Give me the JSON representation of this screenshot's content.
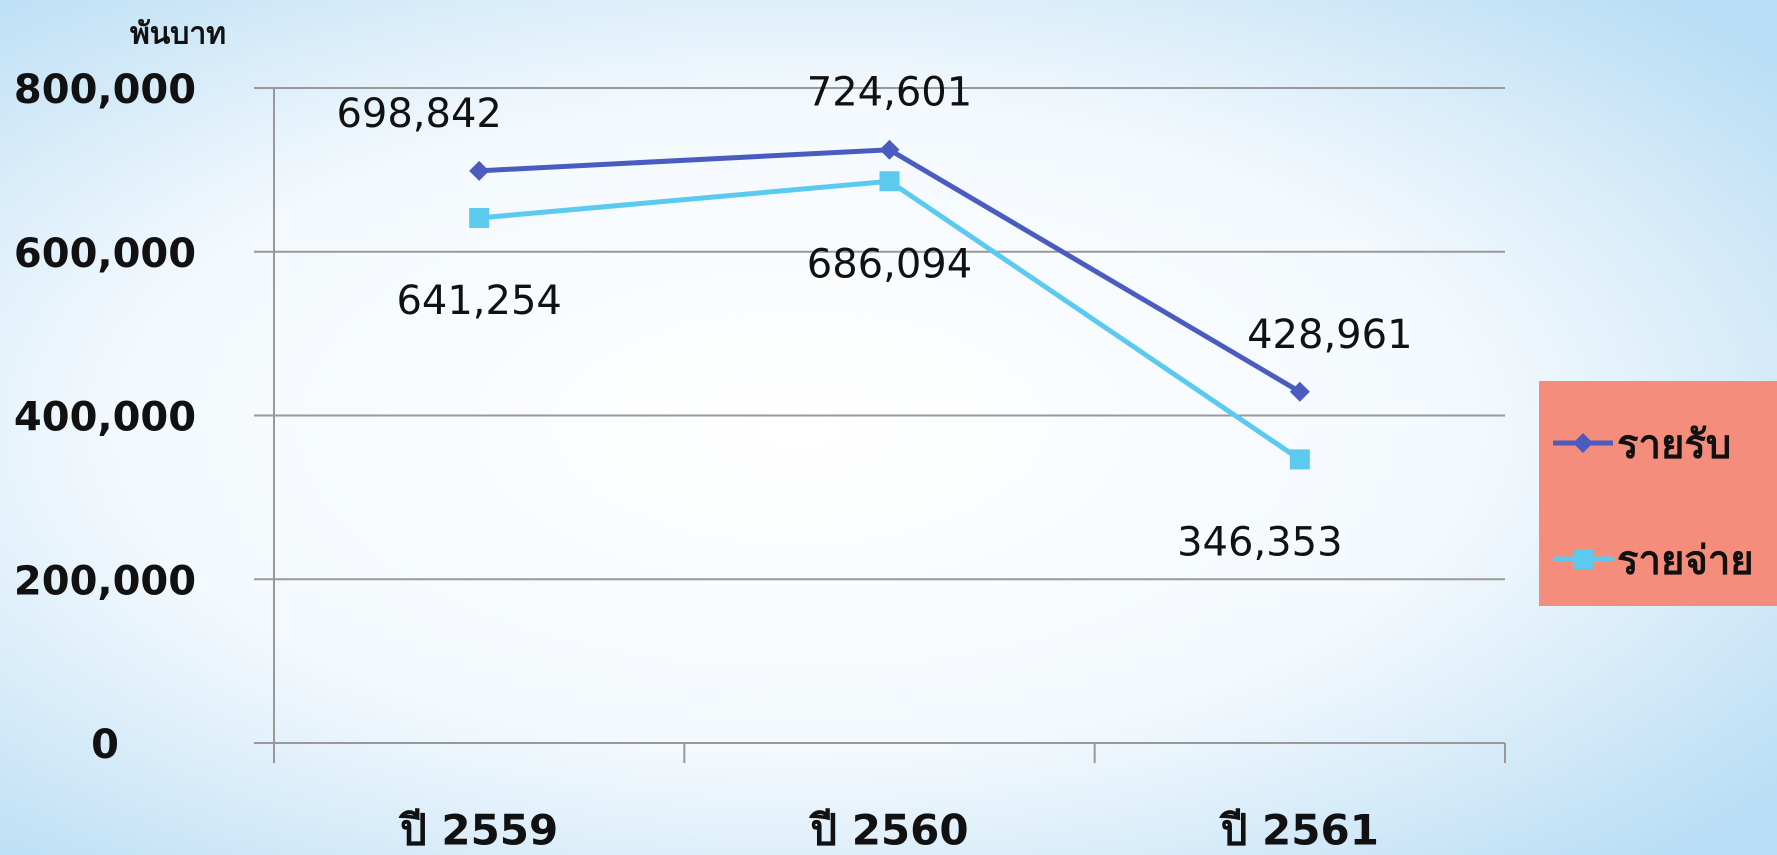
{
  "chart_data": {
    "type": "line",
    "ylabel": "พันบาท",
    "categories": [
      "ปี 2559",
      "ปี 2560",
      "ปี 2561"
    ],
    "series": [
      {
        "name": "รายรับ",
        "color": "#4b5cc0",
        "marker": "diamond",
        "values": [
          698842,
          724601,
          428961
        ],
        "value_labels": [
          "698,842",
          "724,601",
          "428,961"
        ]
      },
      {
        "name": "รายจ่าย",
        "color": "#5ccaee",
        "marker": "square",
        "values": [
          641254,
          686094,
          346353
        ],
        "value_labels": [
          "641,254",
          "686,094",
          "346,353"
        ]
      }
    ],
    "ylim": [
      0,
      800000
    ],
    "yticks": [
      0,
      {
        "value": 200000,
        "label": "200,000"
      },
      {
        "value": 400000,
        "label": "400,000"
      },
      {
        "value": 600000,
        "label": "600,000"
      },
      {
        "value": 800000,
        "label": "800,000"
      }
    ],
    "grid": true,
    "legend": "right",
    "legend_color": "#f58d7c"
  }
}
